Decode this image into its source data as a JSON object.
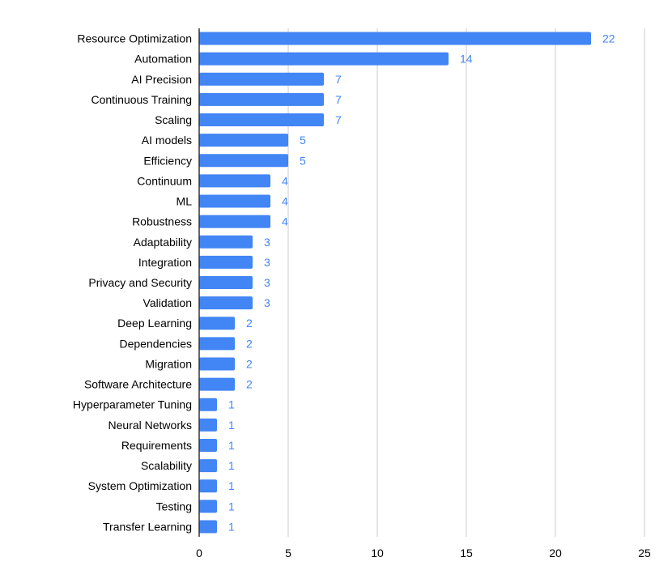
{
  "chart_data": {
    "type": "bar",
    "orientation": "horizontal",
    "title": "",
    "xlabel": "",
    "ylabel": "",
    "categories": [
      "Resource Optimization",
      "Automation",
      "AI Precision",
      "Continuous Training",
      "Scaling",
      "AI models",
      "Efficiency",
      "Continuum",
      "ML",
      "Robustness",
      "Adaptability",
      "Integration",
      "Privacy and Security",
      "Validation",
      "Deep Learning",
      "Dependencies",
      "Migration",
      "Software Architecture",
      "Hyperparameter Tuning",
      "Neural Networks",
      "Requirements",
      "Scalability",
      "System Optimization",
      "Testing",
      "Transfer Learning"
    ],
    "values": [
      22,
      14,
      7,
      7,
      7,
      5,
      5,
      4,
      4,
      4,
      3,
      3,
      3,
      3,
      2,
      2,
      2,
      2,
      1,
      1,
      1,
      1,
      1,
      1,
      1
    ],
    "xlim": [
      0,
      25
    ],
    "xticks": [
      0,
      5,
      10,
      15,
      20,
      25
    ],
    "grid": "vertical",
    "legend": "none",
    "data_labels": true,
    "colors": {
      "bar": "#4285f4",
      "data_label": "#4285f4",
      "grid": "#cccccc",
      "axis": "#333333"
    }
  }
}
